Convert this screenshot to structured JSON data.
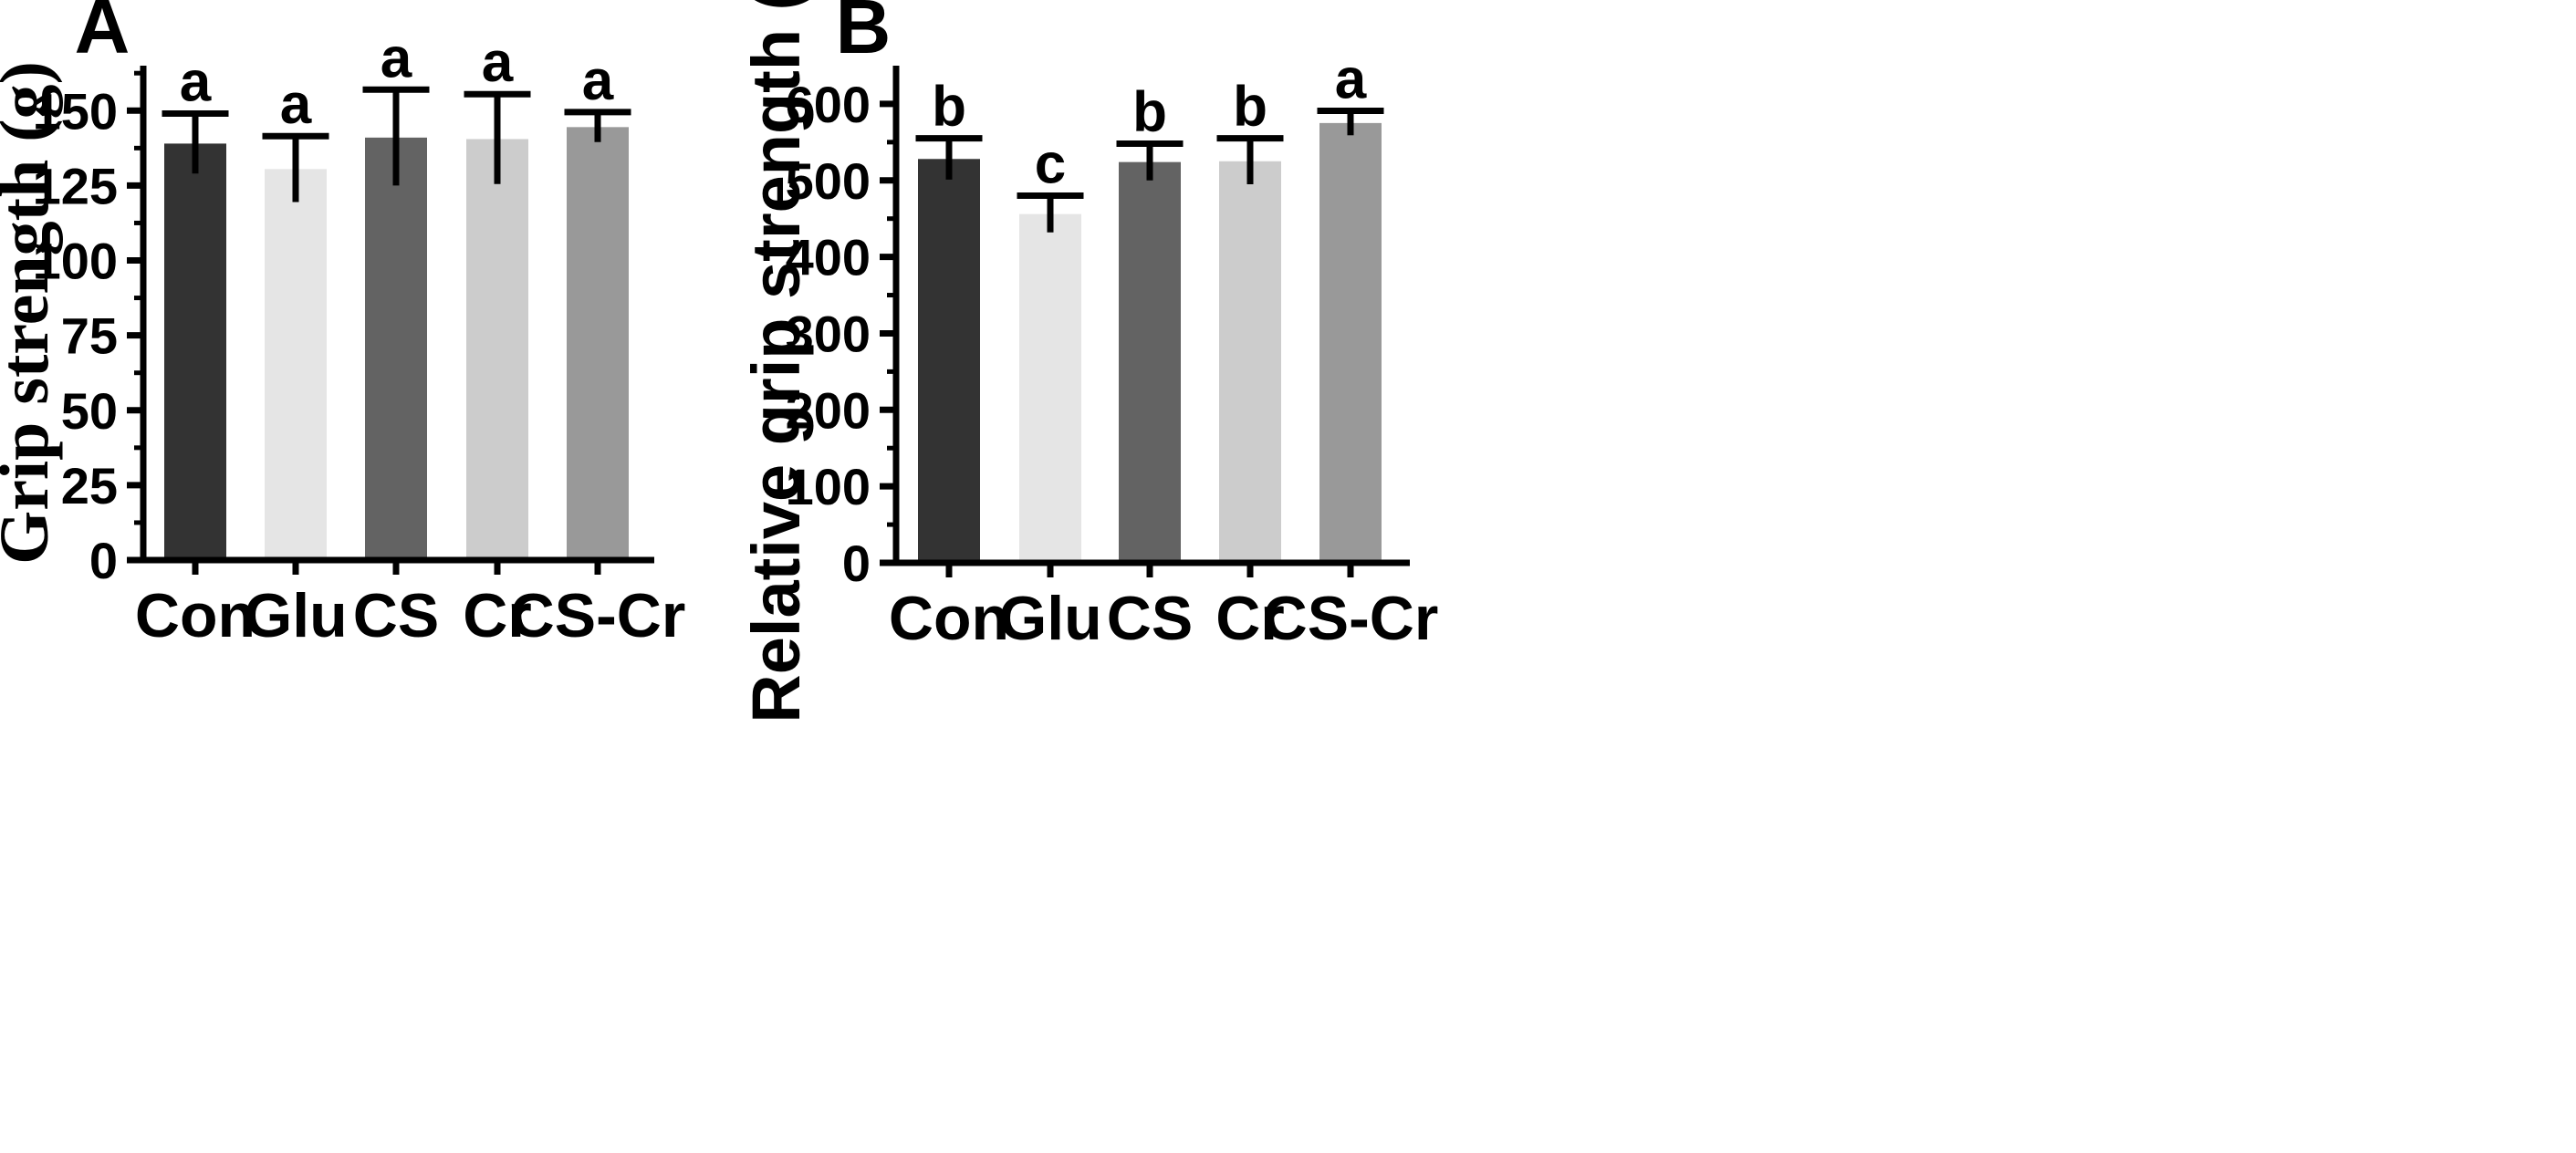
{
  "chart_data": [
    {
      "panel": "A",
      "type": "bar",
      "title": "",
      "xlabel": "",
      "ylabel": "Grip strength (g)",
      "categories": [
        "Con",
        "Glu",
        "CS",
        "Cr",
        "CS-Cr"
      ],
      "values": [
        139,
        130.5,
        141,
        140.5,
        144.5
      ],
      "errors": [
        10,
        11,
        16,
        15,
        5
      ],
      "significance": [
        "a",
        "a",
        "a",
        "a",
        "a"
      ],
      "colors": [
        "#333333",
        "#e5e5e5",
        "#636363",
        "#cccccc",
        "#999999"
      ],
      "ylim": [
        0,
        165
      ],
      "yticks": [
        0,
        25,
        50,
        75,
        100,
        125,
        150
      ],
      "ytick_labels": [
        "0",
        "25",
        "50",
        "75",
        "100",
        "125",
        "150"
      ],
      "grid": false
    },
    {
      "panel": "B",
      "type": "bar",
      "title": "",
      "xlabel": "",
      "ylabel": "Relative grip strength (%)",
      "categories": [
        "Con",
        "Glu",
        "CS",
        "Cr",
        "CS-Cr"
      ],
      "values": [
        528,
        456,
        524,
        525,
        575
      ],
      "errors": [
        27,
        24,
        24,
        30,
        16
      ],
      "significance": [
        "b",
        "c",
        "b",
        "b",
        "a"
      ],
      "colors": [
        "#333333",
        "#e5e5e5",
        "#636363",
        "#cccccc",
        "#999999"
      ],
      "ylim": [
        0,
        650
      ],
      "yticks": [
        0,
        100,
        200,
        300,
        400,
        500,
        600
      ],
      "ytick_labels": [
        "0",
        "100",
        "200",
        "300",
        "400",
        "500",
        "600"
      ],
      "grid": false
    }
  ]
}
